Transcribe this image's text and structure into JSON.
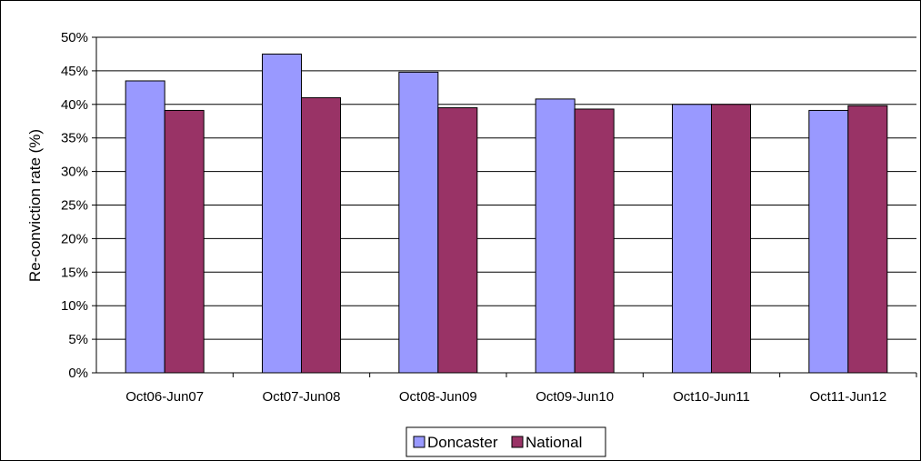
{
  "chart_data": {
    "type": "bar",
    "categories": [
      "Oct06-Jun07",
      "Oct07-Jun08",
      "Oct08-Jun09",
      "Oct09-Jun10",
      "Oct10-Jun11",
      "Oct11-Jun12"
    ],
    "series": [
      {
        "name": "Doncaster",
        "color": "#9999ff",
        "values": [
          43.5,
          47.5,
          44.8,
          40.8,
          40.0,
          39.1
        ]
      },
      {
        "name": "National",
        "color": "#993366",
        "values": [
          39.1,
          41.0,
          39.5,
          39.3,
          40.0,
          39.8
        ]
      }
    ],
    "title": "",
    "xlabel": "",
    "ylabel": "Re-conviction rate (%)",
    "ylim": [
      0,
      50
    ],
    "yticks": [
      0,
      5,
      10,
      15,
      20,
      25,
      30,
      35,
      40,
      45,
      50
    ],
    "ytick_labels": [
      "0%",
      "5%",
      "10%",
      "15%",
      "20%",
      "25%",
      "30%",
      "35%",
      "40%",
      "45%",
      "50%"
    ],
    "grid": true,
    "legend_position": "bottom"
  }
}
